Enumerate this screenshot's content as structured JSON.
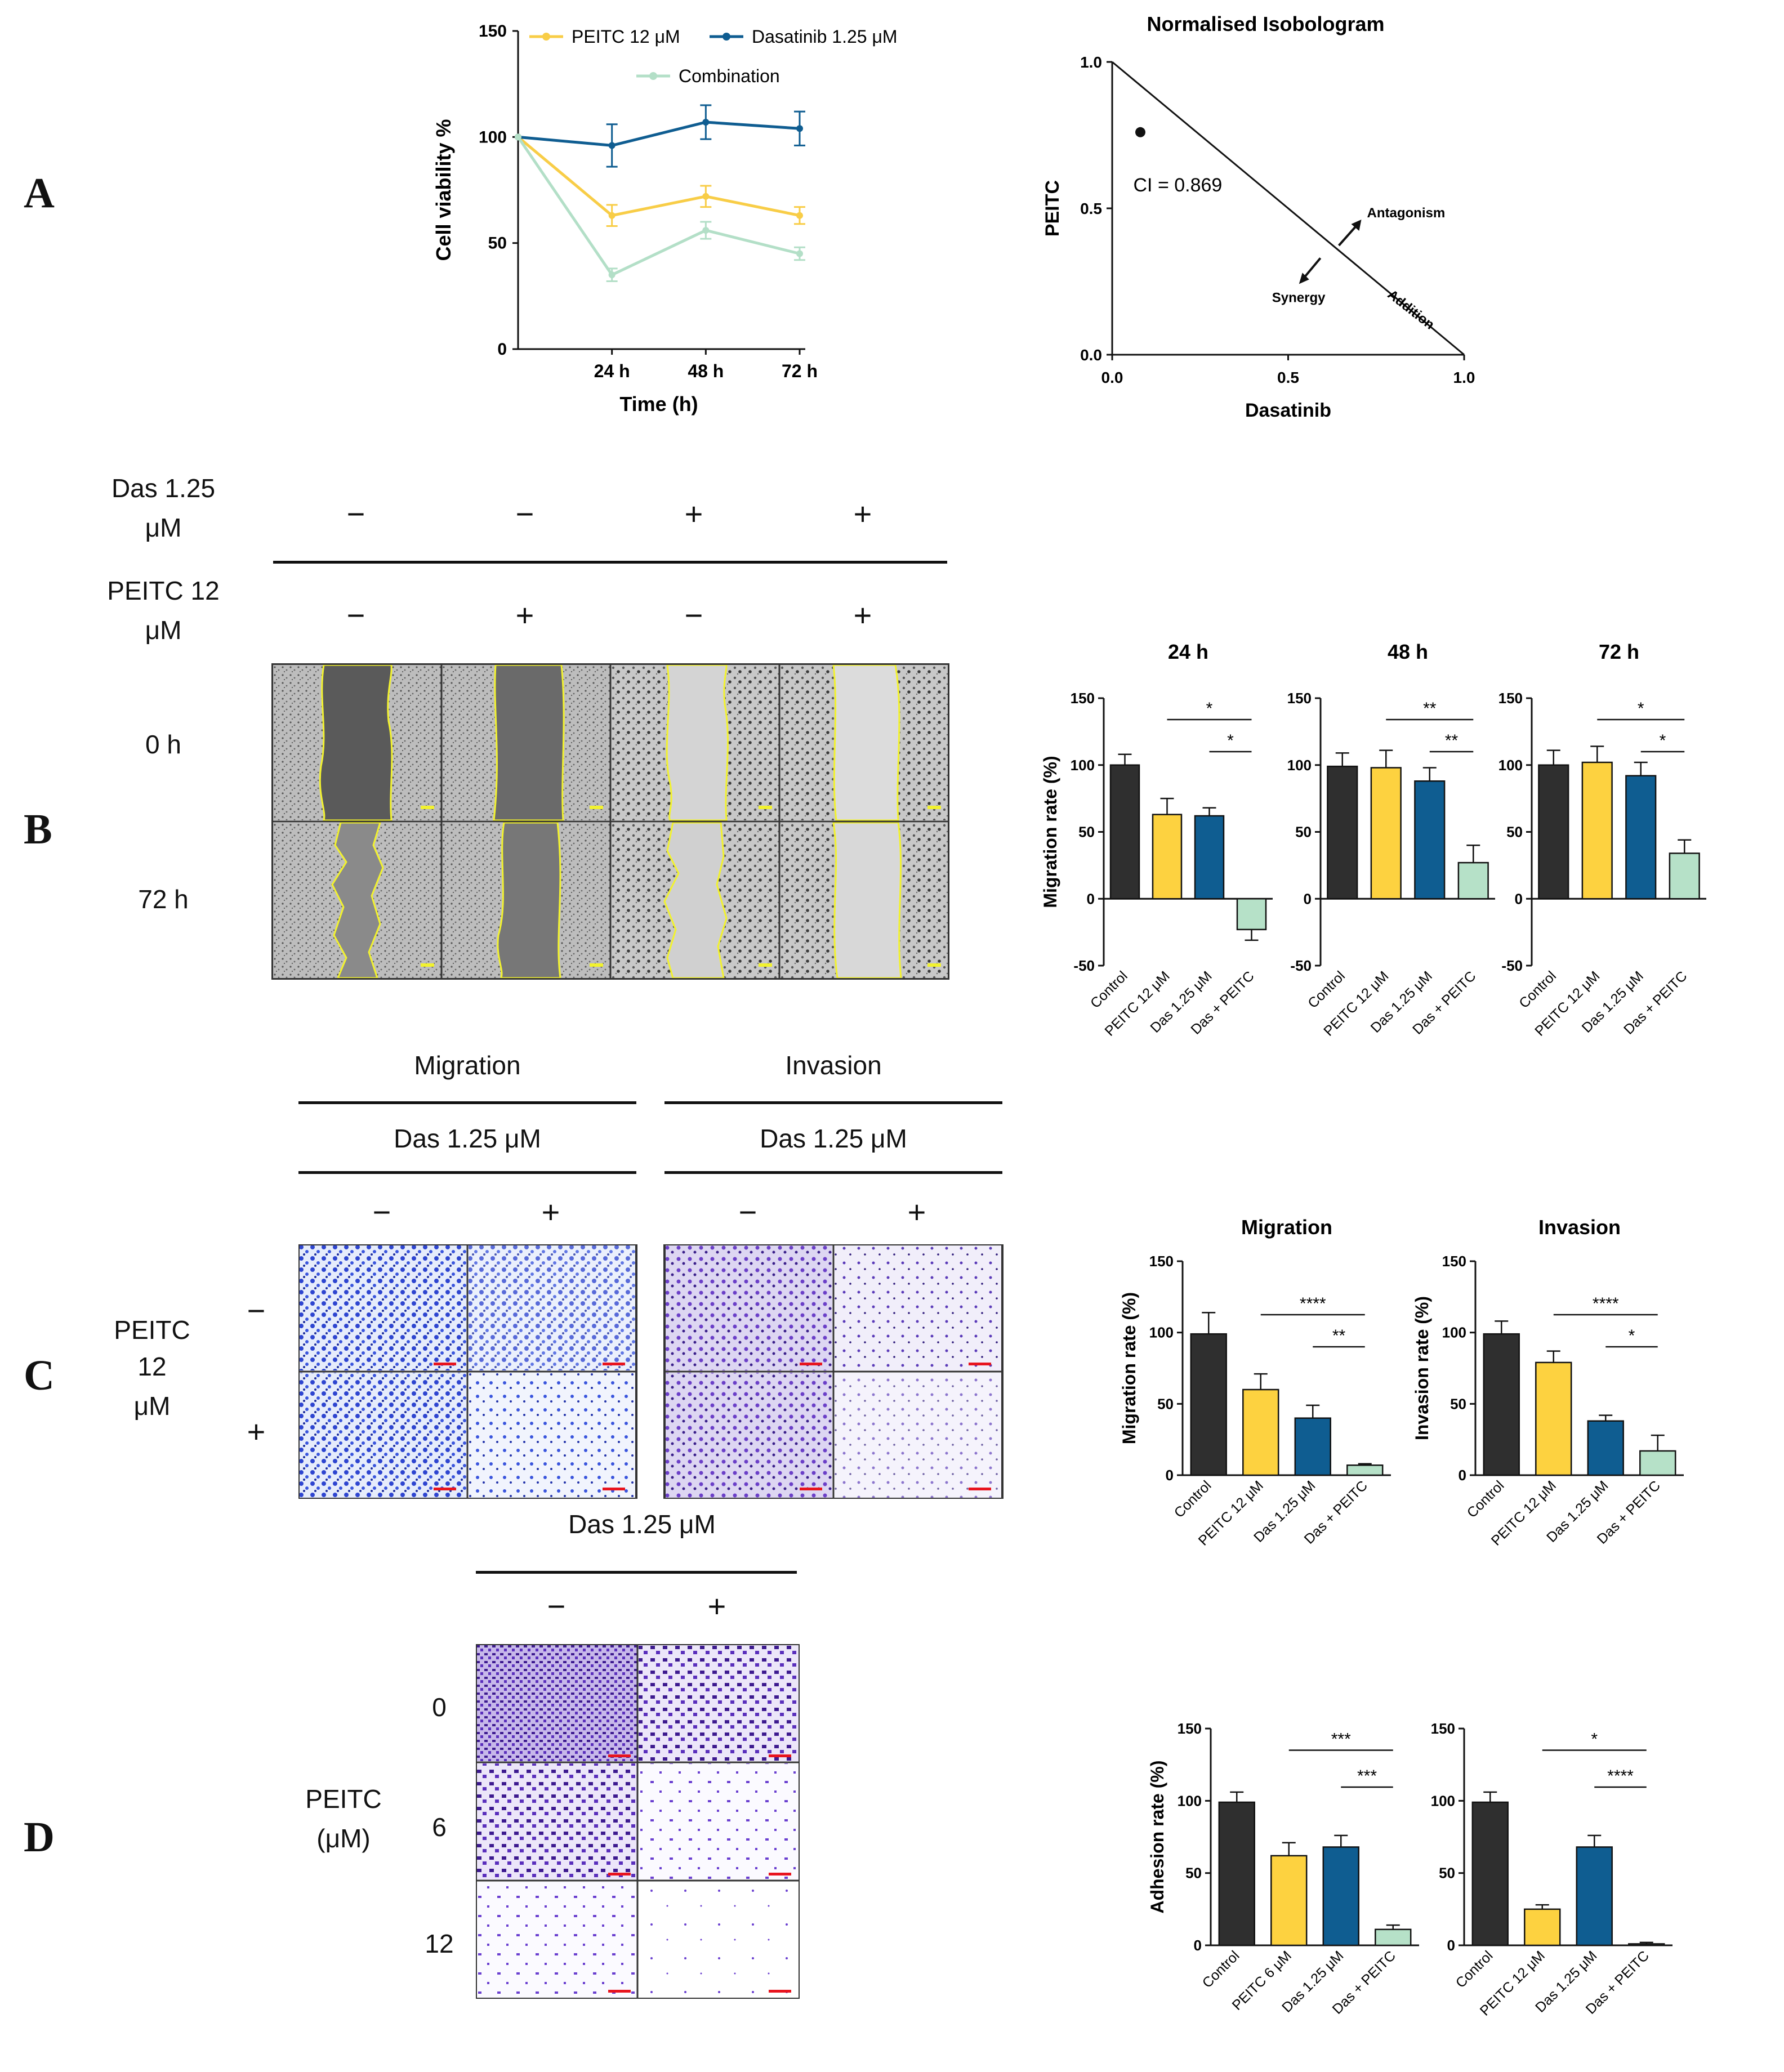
{
  "panel_letters": [
    "A",
    "B",
    "C",
    "D"
  ],
  "colors": {
    "control": "#2f2f2f",
    "peitc": "#fdd240",
    "das": "#0f5d91",
    "combo": "#b6e1c8",
    "line_peitc": "#f8cd47",
    "line_das": "#0f5d91",
    "line_combo": "#b3dfc7",
    "yellow_outline": "#f2f22e",
    "scale_red": "#e8141e"
  },
  "panel_b": {
    "das_label_line1": "Das 1.25",
    "das_label_line2": "μM",
    "peitc_label_line1": "PEITC 12",
    "peitc_label_line2": "μM",
    "das_signs": [
      "−",
      "−",
      "+",
      "+"
    ],
    "peitc_signs": [
      "−",
      "+",
      "−",
      "+"
    ],
    "row_labels": [
      "0 h",
      "72 h"
    ]
  },
  "panel_c": {
    "group_titles": [
      "Migration",
      "Invasion"
    ],
    "das_labels": [
      "Das 1.25 μM",
      "Das 1.25 μM"
    ],
    "col_signs": [
      "−",
      "+",
      "−",
      "+"
    ],
    "peitc_label_line1": "PEITC",
    "peitc_label_line2": "12",
    "peitc_label_line3": "μM",
    "row_signs": [
      "−",
      "+"
    ]
  },
  "panel_d": {
    "das_label": "Das 1.25 μM",
    "col_signs": [
      "−",
      "+"
    ],
    "peitc_label_line1": "PEITC",
    "peitc_label_line2": "(μM)",
    "row_labels": [
      "0",
      "6",
      "12"
    ]
  },
  "chart_data": [
    {
      "id": "A-viability",
      "type": "line",
      "title": "",
      "xlabel": "Time (h)",
      "ylabel": "Cell viability %",
      "x": [
        0,
        24,
        48,
        72
      ],
      "x_tick_labels": [
        "24 h",
        "48 h",
        "72 h"
      ],
      "y_ticks": [
        0,
        50,
        100,
        150
      ],
      "ylim": [
        0,
        150
      ],
      "legend_items": [
        "PEITC 12 μM",
        "Dasatinib 1.25 μM",
        "Combination"
      ],
      "series": [
        {
          "name": "PEITC 12 μM",
          "values": [
            100,
            63,
            72,
            63
          ],
          "errors": [
            0,
            5,
            5,
            4
          ]
        },
        {
          "name": "Dasatinib 1.25 μM",
          "values": [
            100,
            96,
            107,
            104
          ],
          "errors": [
            0,
            10,
            8,
            8
          ]
        },
        {
          "name": "Combination",
          "values": [
            100,
            35,
            56,
            45
          ],
          "errors": [
            0,
            3,
            4,
            3
          ]
        }
      ]
    },
    {
      "id": "A-isobologram",
      "type": "scatter",
      "title": "Normalised Isobologram",
      "xlabel": "Dasatinib",
      "ylabel": "PEITC",
      "x_ticks": [
        "0.0",
        "0.5",
        "1.0"
      ],
      "y_ticks": [
        "0.0",
        "0.5",
        "1.0"
      ],
      "xlim": [
        0,
        1
      ],
      "ylim": [
        0,
        1
      ],
      "points": [
        {
          "x": 0.08,
          "y": 0.76
        }
      ],
      "annotations": [
        "CI = 0.869",
        "Antagonism",
        "Synergy",
        "Addition"
      ]
    },
    {
      "id": "B-24h",
      "type": "bar",
      "title": "24 h",
      "ylabel": "Migration rate (%)",
      "categories": [
        "Control",
        "PEITC 12 μM",
        "Das 1.25 μM",
        "Das + PEITC"
      ],
      "values": [
        100,
        63,
        62,
        -23
      ],
      "errors": [
        8,
        12,
        6,
        8
      ],
      "y_ticks": [
        -50,
        0,
        50,
        100,
        150
      ],
      "ylim": [
        -50,
        150
      ],
      "significance": [
        "*",
        "*"
      ]
    },
    {
      "id": "B-48h",
      "type": "bar",
      "title": "48 h",
      "ylabel": "",
      "categories": [
        "Control",
        "PEITC 12 μM",
        "Das 1.25 μM",
        "Das + PEITC"
      ],
      "values": [
        99,
        98,
        88,
        27
      ],
      "errors": [
        10,
        13,
        10,
        13
      ],
      "y_ticks": [
        -50,
        0,
        50,
        100,
        150
      ],
      "ylim": [
        -50,
        150
      ],
      "significance": [
        "**",
        "**"
      ]
    },
    {
      "id": "B-72h",
      "type": "bar",
      "title": "72 h",
      "ylabel": "",
      "categories": [
        "Control",
        "PEITC 12 μM",
        "Das 1.25 μM",
        "Das + PEITC"
      ],
      "values": [
        100,
        102,
        92,
        34
      ],
      "errors": [
        11,
        12,
        10,
        10
      ],
      "y_ticks": [
        -50,
        0,
        50,
        100,
        150
      ],
      "ylim": [
        -50,
        150
      ],
      "significance": [
        "*",
        "*"
      ]
    },
    {
      "id": "C-migration",
      "type": "bar",
      "title": "Migration",
      "ylabel": "Migration rate (%)",
      "categories": [
        "Control",
        "PEITC 12 μM",
        "Das 1.25 μM",
        "Das + PEITC"
      ],
      "values": [
        99,
        60,
        40,
        7
      ],
      "errors": [
        15,
        11,
        9,
        1
      ],
      "y_ticks": [
        0,
        50,
        100,
        150
      ],
      "ylim": [
        0,
        150
      ],
      "significance": [
        "****",
        "**"
      ]
    },
    {
      "id": "C-invasion",
      "type": "bar",
      "title": "Invasion",
      "ylabel": "Invasion rate (%)",
      "categories": [
        "Control",
        "PEITC 12 μM",
        "Das 1.25 μM",
        "Das + PEITC"
      ],
      "values": [
        99,
        79,
        38,
        17
      ],
      "errors": [
        9,
        8,
        4,
        11
      ],
      "y_ticks": [
        0,
        50,
        100,
        150
      ],
      "ylim": [
        0,
        150
      ],
      "significance": [
        "****",
        "*"
      ]
    },
    {
      "id": "D-adhesion-6",
      "type": "bar",
      "title": "",
      "ylabel": "Adhesion rate (%)",
      "categories": [
        "Control",
        "PEITC 6 μM",
        "Das 1.25 μM",
        "Das + PEITC"
      ],
      "values": [
        99,
        62,
        68,
        11
      ],
      "errors": [
        7,
        9,
        8,
        3
      ],
      "y_ticks": [
        0,
        50,
        100,
        150
      ],
      "ylim": [
        0,
        150
      ],
      "significance": [
        "***",
        "***"
      ]
    },
    {
      "id": "D-adhesion-12",
      "type": "bar",
      "title": "",
      "ylabel": "",
      "categories": [
        "Control",
        "PEITC 12 μM",
        "Das 1.25 μM",
        "Das + PEITC"
      ],
      "values": [
        99,
        25,
        68,
        1
      ],
      "errors": [
        7,
        3,
        8,
        1
      ],
      "y_ticks": [
        0,
        50,
        100,
        150
      ],
      "ylim": [
        0,
        150
      ],
      "significance": [
        "*",
        "****"
      ]
    }
  ]
}
